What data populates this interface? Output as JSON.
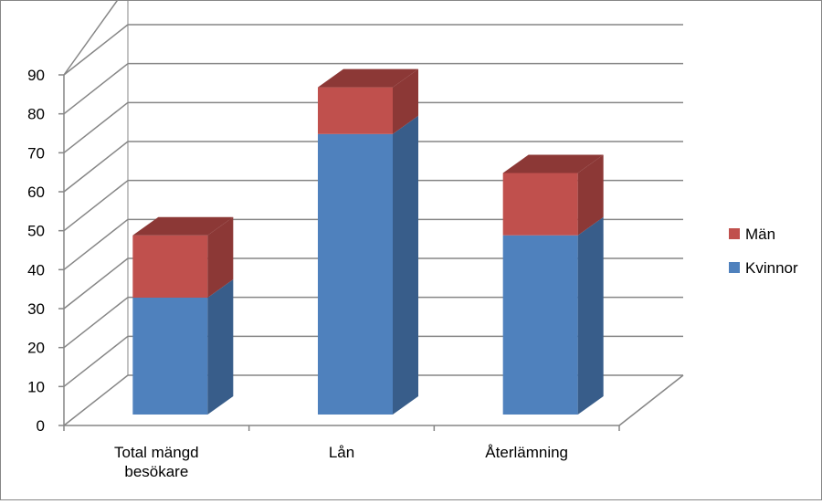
{
  "chart_data": {
    "type": "bar",
    "stacked": true,
    "three_d": true,
    "categories": [
      [
        "Total mängd",
        "besökare"
      ],
      [
        "Lån"
      ],
      [
        "Återlämning"
      ]
    ],
    "series": [
      {
        "name": "Kvinnor",
        "values": [
          30,
          72,
          46
        ],
        "color": "#4F81BD",
        "side_color": "#385D8A",
        "top_color": "#4A74A8"
      },
      {
        "name": "Män",
        "values": [
          16,
          12,
          16
        ],
        "color": "#C0504D",
        "side_color": "#8C3836",
        "top_color": "#A0403D"
      }
    ],
    "ylim": [
      0,
      90
    ],
    "yticks": [
      0,
      10,
      20,
      30,
      40,
      50,
      60,
      70,
      80,
      90
    ],
    "grid": true,
    "legend": {
      "position": "right",
      "entries": [
        "Män",
        "Kvinnor"
      ]
    },
    "title": "",
    "xlabel": "",
    "ylabel": ""
  }
}
